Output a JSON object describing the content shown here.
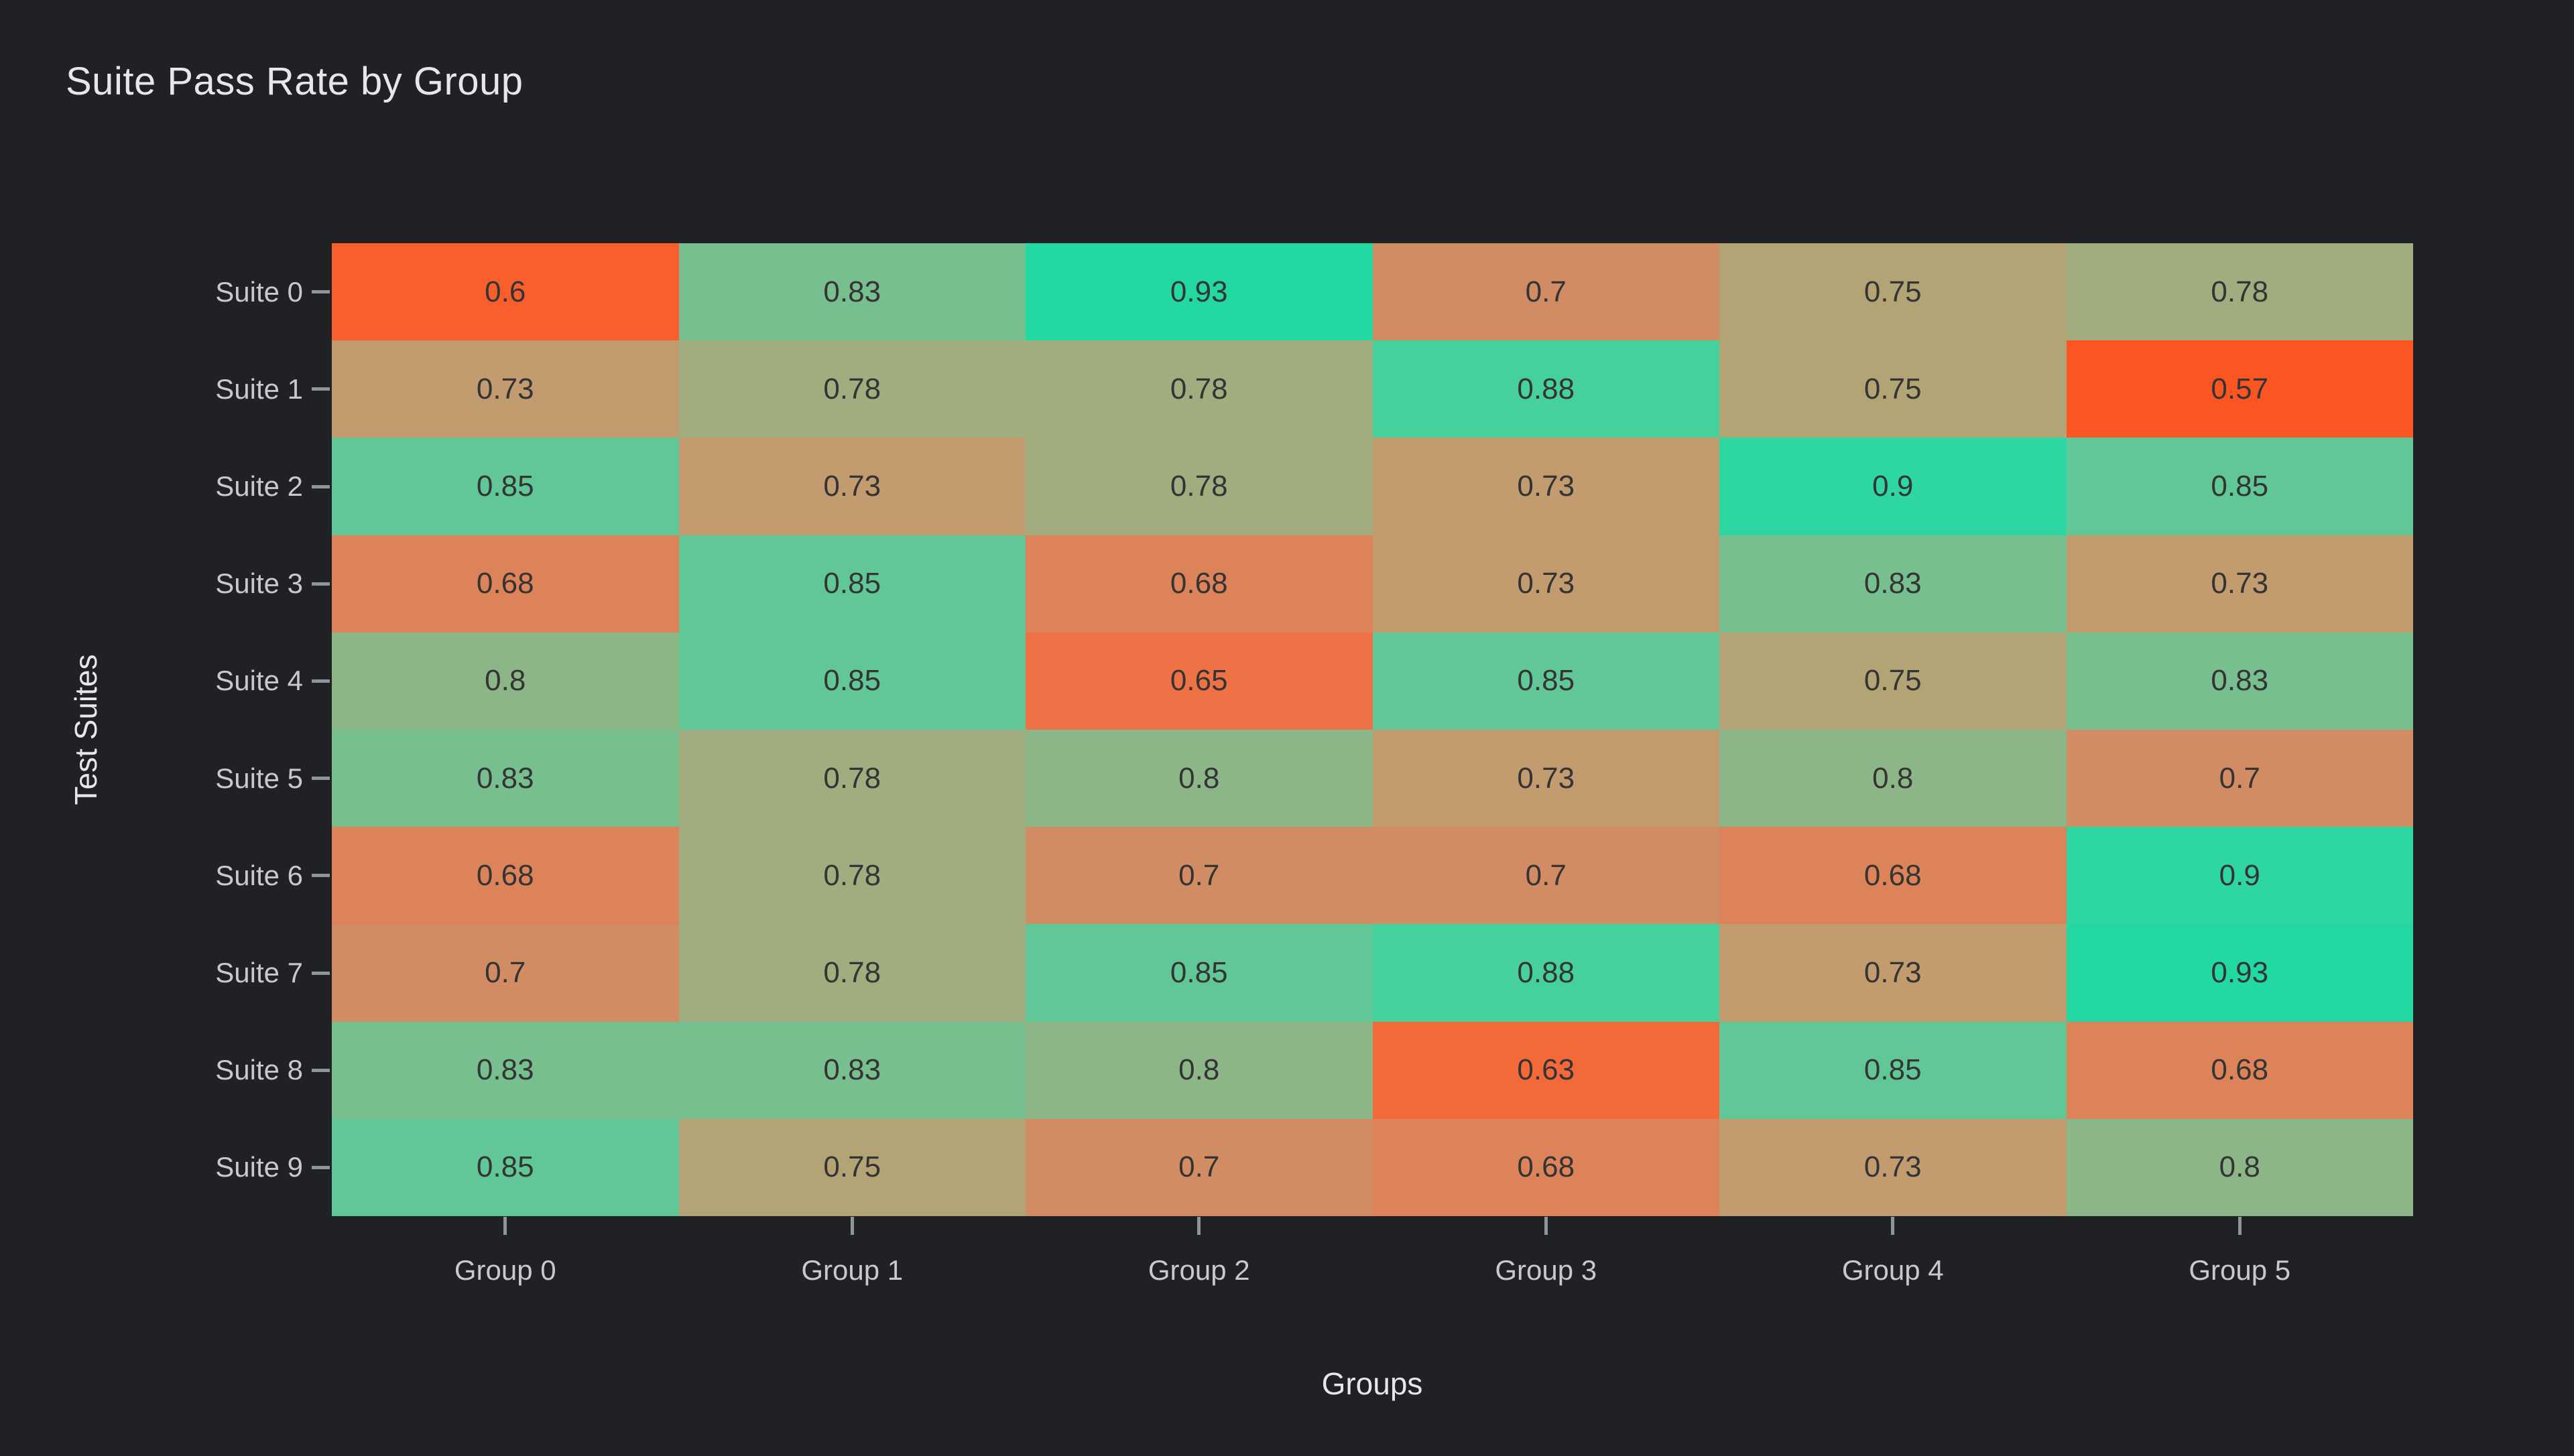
{
  "title": {
    "text": "Suite Pass Rate by Group"
  },
  "axes": {
    "x": {
      "label": "Groups",
      "ticks": [
        "Group 0",
        "Group 1",
        "Group 2",
        "Group 3",
        "Group 4",
        "Group 5"
      ]
    },
    "y": {
      "label": "Test Suites",
      "ticks": [
        "Suite 0",
        "Suite 1",
        "Suite 2",
        "Suite 3",
        "Suite 4",
        "Suite 5",
        "Suite 6",
        "Suite 7",
        "Suite 8",
        "Suite 9"
      ]
    }
  },
  "chart_data": {
    "type": "heatmap",
    "title": "Suite Pass Rate by Group",
    "xlabel": "Groups",
    "ylabel": "Test Suites",
    "columns": [
      "Group 0",
      "Group 1",
      "Group 2",
      "Group 3",
      "Group 4",
      "Group 5"
    ],
    "rows": [
      "Suite 0",
      "Suite 1",
      "Suite 2",
      "Suite 3",
      "Suite 4",
      "Suite 5",
      "Suite 6",
      "Suite 7",
      "Suite 8",
      "Suite 9"
    ],
    "values": [
      [
        0.6,
        0.83,
        0.93,
        0.7,
        0.75,
        0.78
      ],
      [
        0.73,
        0.78,
        0.78,
        0.88,
        0.75,
        0.57
      ],
      [
        0.85,
        0.73,
        0.78,
        0.73,
        0.9,
        0.85
      ],
      [
        0.68,
        0.85,
        0.68,
        0.73,
        0.83,
        0.73
      ],
      [
        0.8,
        0.85,
        0.65,
        0.85,
        0.75,
        0.83
      ],
      [
        0.83,
        0.78,
        0.8,
        0.73,
        0.8,
        0.7
      ],
      [
        0.68,
        0.78,
        0.7,
        0.7,
        0.68,
        0.9
      ],
      [
        0.7,
        0.78,
        0.85,
        0.88,
        0.73,
        0.93
      ],
      [
        0.83,
        0.83,
        0.8,
        0.63,
        0.85,
        0.68
      ],
      [
        0.85,
        0.75,
        0.7,
        0.68,
        0.73,
        0.8
      ]
    ],
    "value_min": 0.57,
    "value_max": 0.93,
    "annotations": true,
    "grid": false,
    "legend": false,
    "cell_colors": {
      "0.57": "#fb5622",
      "0.6": "#f95e2d",
      "0.63": "#f4693a",
      "0.65": "#ee7245",
      "0.68": "#dc8359",
      "0.7": "#d28c63",
      "0.73": "#c29b6e",
      "0.75": "#b3a475",
      "0.78": "#a1ad7f",
      "0.8": "#8cb588",
      "0.83": "#77bf8f",
      "0.85": "#61c796",
      "0.88": "#45d09c",
      "0.9": "#2ed7a1",
      "0.93": "#22d9a3"
    }
  },
  "colors": {
    "background": "#202124",
    "title_text": "#e7e7e9",
    "axis_label_text": "#e7e7e9",
    "tick_label_text": "#c7c9cb",
    "tick_mark": "#8e969b",
    "cell_text": "#343434"
  }
}
